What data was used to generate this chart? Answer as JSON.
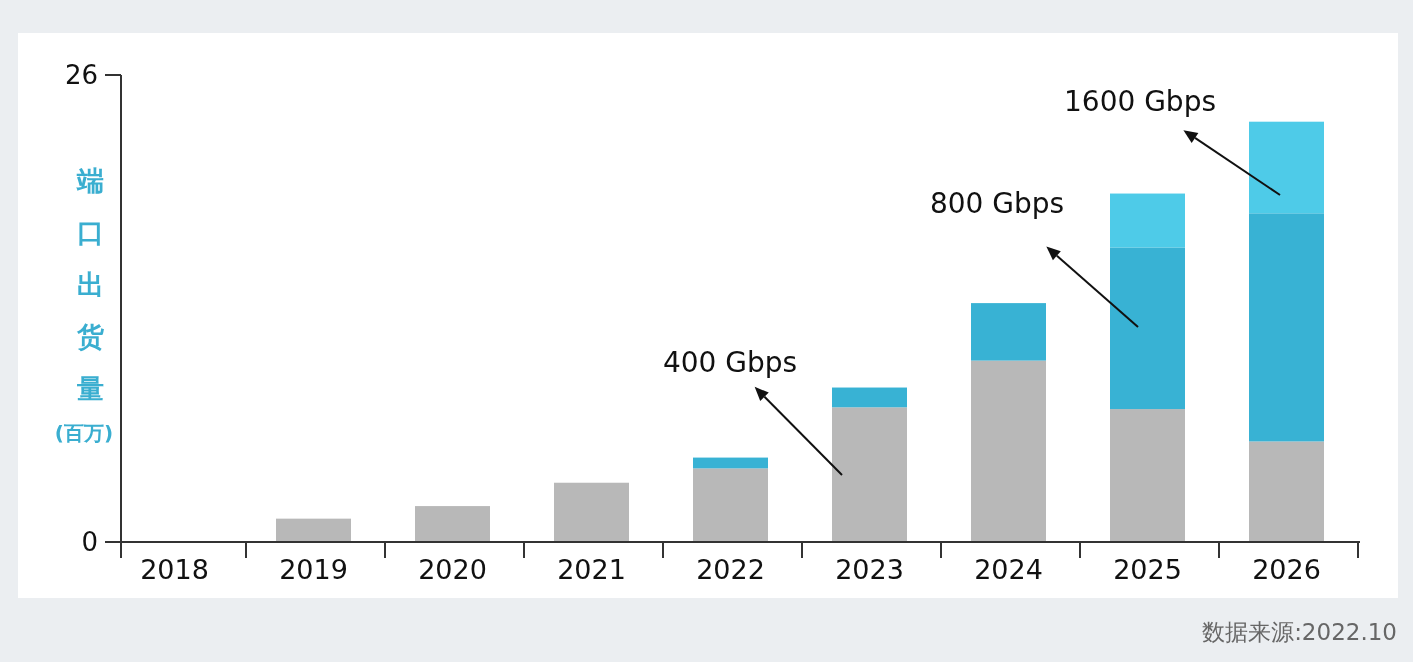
{
  "chart_data": {
    "type": "bar",
    "stacked": true,
    "ylabel": "端口出货量(百万)",
    "categories": [
      "2018",
      "2019",
      "2020",
      "2021",
      "2022",
      "2023",
      "2024",
      "2025",
      "2026"
    ],
    "ylim": [
      0,
      26
    ],
    "yticks": [
      0,
      26
    ],
    "series": [
      {
        "color": "#b8b8b8",
        "values": [
          0,
          1.3,
          2.0,
          3.3,
          4.1,
          7.5,
          10.1,
          7.4,
          5.6
        ]
      },
      {
        "color": "#38b2d4",
        "values": [
          null,
          null,
          null,
          null,
          0.6,
          1.1,
          3.2,
          9.0,
          12.7
        ]
      },
      {
        "color": "#4ecbe8",
        "values": [
          null,
          null,
          null,
          null,
          null,
          null,
          null,
          3.0,
          5.1
        ]
      }
    ],
    "annotations": [
      "400 Gbps",
      "800 Gbps",
      "1600 Gbps",
      "数据来源:2022.10"
    ],
    "grid": false
  }
}
